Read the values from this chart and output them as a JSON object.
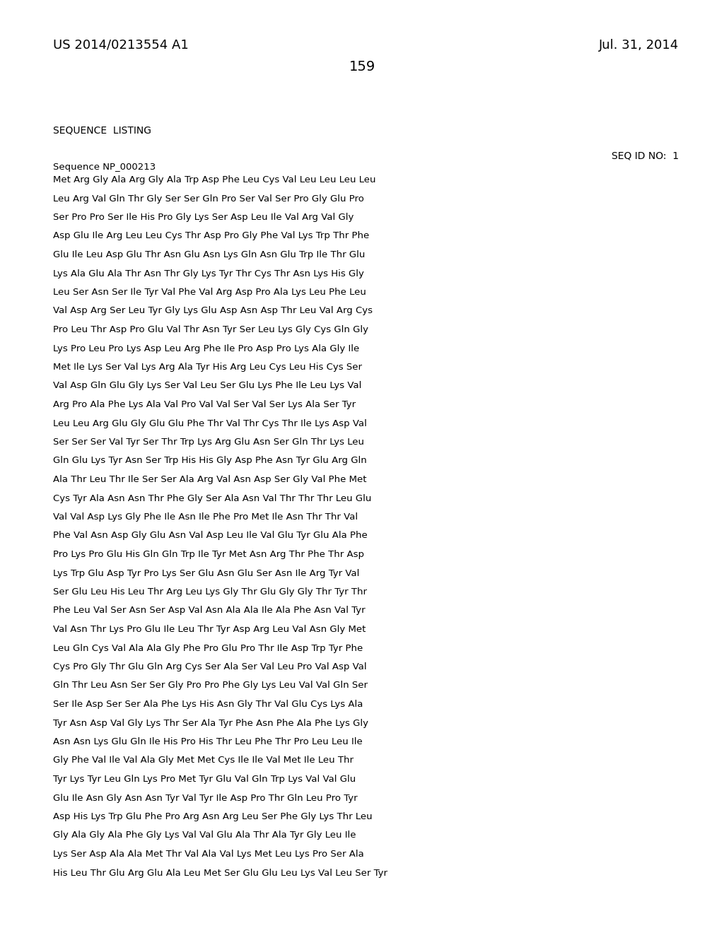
{
  "background_color": "#ffffff",
  "header_left": "US 2014/0213554 A1",
  "header_right": "Jul. 31, 2014",
  "page_number": "159",
  "section_label": "SEQUENCE  LISTING",
  "seq_id_label": "SEQ ID NO:  1",
  "sequence_name": "Sequence NP_000213",
  "font_size_header": 13,
  "font_size_body": 9.5,
  "font_size_section": 10,
  "lines": [
    "Met Arg Gly Ala Arg Gly Ala Trp Asp Phe Leu Cys Val Leu Leu Leu Leu",
    "Leu Arg Val Gln Thr Gly Ser Ser Gln Pro Ser Val Ser Pro Gly Glu Pro",
    "Ser Pro Pro Ser Ile His Pro Gly Lys Ser Asp Leu Ile Val Arg Val Gly",
    "Asp Glu Ile Arg Leu Leu Cys Thr Asp Pro Gly Phe Val Lys Trp Thr Phe",
    "Glu Ile Leu Asp Glu Thr Asn Glu Asn Lys Gln Asn Glu Trp Ile Thr Glu",
    "Lys Ala Glu Ala Thr Asn Thr Gly Lys Tyr Thr Cys Thr Asn Lys His Gly",
    "Leu Ser Asn Ser Ile Tyr Val Phe Val Arg Asp Pro Ala Lys Leu Phe Leu",
    "Val Asp Arg Ser Leu Tyr Gly Lys Glu Asp Asn Asp Thr Leu Val Arg Cys",
    "Pro Leu Thr Asp Pro Glu Val Thr Asn Tyr Ser Leu Lys Gly Cys Gln Gly",
    "Lys Pro Leu Pro Lys Asp Leu Arg Phe Ile Pro Asp Pro Lys Ala Gly Ile",
    "Met Ile Lys Ser Val Lys Arg Ala Tyr His Arg Leu Cys Leu His Cys Ser",
    "Val Asp Gln Glu Gly Lys Ser Val Leu Ser Glu Lys Phe Ile Leu Lys Val",
    "Arg Pro Ala Phe Lys Ala Val Pro Val Val Ser Val Ser Lys Ala Ser Tyr",
    "Leu Leu Arg Glu Gly Glu Glu Phe Thr Val Thr Cys Thr Ile Lys Asp Val",
    "Ser Ser Ser Val Tyr Ser Thr Trp Lys Arg Glu Asn Ser Gln Thr Lys Leu",
    "Gln Glu Lys Tyr Asn Ser Trp His His Gly Asp Phe Asn Tyr Glu Arg Gln",
    "Ala Thr Leu Thr Ile Ser Ser Ala Arg Val Asn Asp Ser Gly Val Phe Met",
    "Cys Tyr Ala Asn Asn Thr Phe Gly Ser Ala Asn Val Thr Thr Thr Leu Glu",
    "Val Val Asp Lys Gly Phe Ile Asn Ile Phe Pro Met Ile Asn Thr Thr Val",
    "Phe Val Asn Asp Gly Glu Asn Val Asp Leu Ile Val Glu Tyr Glu Ala Phe",
    "Pro Lys Pro Glu His Gln Gln Trp Ile Tyr Met Asn Arg Thr Phe Thr Asp",
    "Lys Trp Glu Asp Tyr Pro Lys Ser Glu Asn Glu Ser Asn Ile Arg Tyr Val",
    "Ser Glu Leu His Leu Thr Arg Leu Lys Gly Thr Glu Gly Gly Thr Tyr Thr",
    "Phe Leu Val Ser Asn Ser Asp Val Asn Ala Ala Ile Ala Phe Asn Val Tyr",
    "Val Asn Thr Lys Pro Glu Ile Leu Thr Tyr Asp Arg Leu Val Asn Gly Met",
    "Leu Gln Cys Val Ala Ala Gly Phe Pro Glu Pro Thr Ile Asp Trp Tyr Phe",
    "Cys Pro Gly Thr Glu Gln Arg Cys Ser Ala Ser Val Leu Pro Val Asp Val",
    "Gln Thr Leu Asn Ser Ser Gly Pro Pro Phe Gly Lys Leu Val Val Gln Ser",
    "Ser Ile Asp Ser Ser Ala Phe Lys His Asn Gly Thr Val Glu Cys Lys Ala",
    "Tyr Asn Asp Val Gly Lys Thr Ser Ala Tyr Phe Asn Phe Ala Phe Lys Gly",
    "Asn Asn Lys Glu Gln Ile His Pro His Thr Leu Phe Thr Pro Leu Leu Ile",
    "Gly Phe Val Ile Val Ala Gly Met Met Cys Ile Ile Val Met Ile Leu Thr",
    "Tyr Lys Tyr Leu Gln Lys Pro Met Tyr Glu Val Gln Trp Lys Val Val Glu",
    "Glu Ile Asn Gly Asn Asn Tyr Val Tyr Ile Asp Pro Thr Gln Leu Pro Tyr",
    "Asp His Lys Trp Glu Phe Pro Arg Asn Arg Leu Ser Phe Gly Lys Thr Leu",
    "Gly Ala Gly Ala Phe Gly Lys Val Val Glu Ala Thr Ala Tyr Gly Leu Ile",
    "Lys Ser Asp Ala Ala Met Thr Val Ala Val Lys Met Leu Lys Pro Ser Ala",
    "His Leu Thr Glu Arg Glu Ala Leu Met Ser Glu Glu Leu Lys Val Leu Ser Tyr"
  ]
}
